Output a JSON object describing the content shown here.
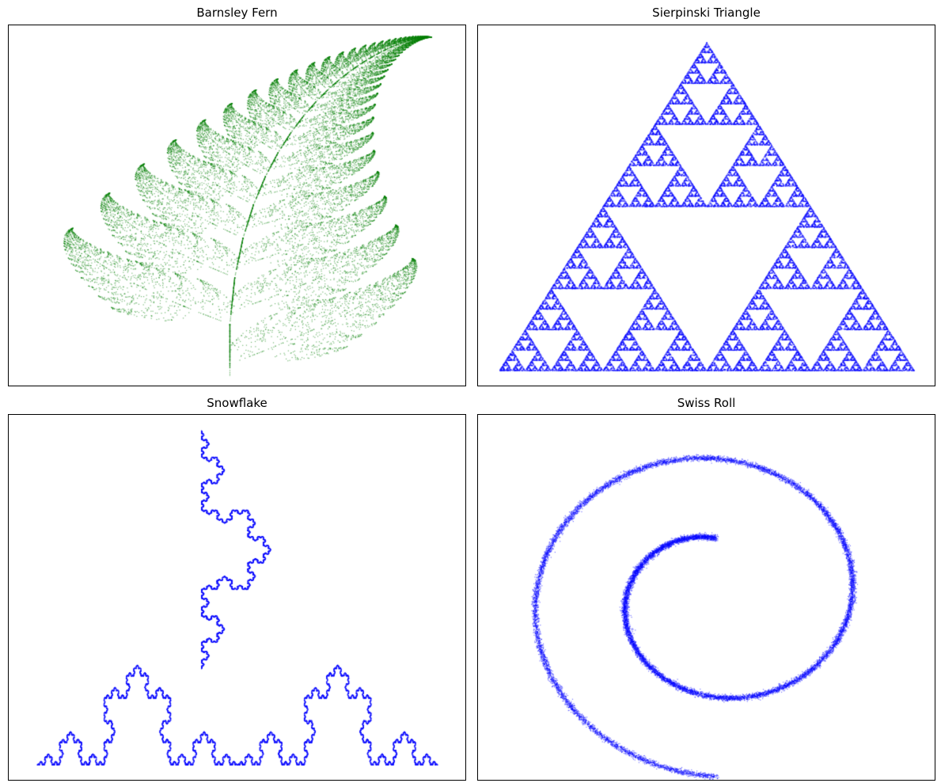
{
  "chart_data": [
    {
      "type": "scatter",
      "title": "Barnsley Fern",
      "shape": "barnsley-fern",
      "color": "#008000",
      "xlim": [
        -2.9,
        3.1
      ],
      "ylim": [
        -0.2,
        10.3
      ],
      "ticks": false,
      "grid": false
    },
    {
      "type": "scatter",
      "title": "Sierpinski Triangle",
      "shape": "sierpinski-triangle",
      "color": "#0000ff",
      "xlim": [
        -0.05,
        1.05
      ],
      "ylim": [
        -0.04,
        0.91
      ],
      "ticks": false,
      "grid": false
    },
    {
      "type": "scatter",
      "title": "Snowflake",
      "shape": "koch-snowflake-ifs",
      "color": "#0000ff",
      "xlim": [
        -0.07,
        1.07
      ],
      "ylim": [
        -0.04,
        0.91
      ],
      "ticks": false,
      "grid": false
    },
    {
      "type": "scatter",
      "title": "Swiss Roll",
      "shape": "spiral",
      "color": "#0000ff",
      "xlim": [
        -1.23,
        1.13
      ],
      "ylim": [
        -1.08,
        0.96
      ],
      "ticks": false,
      "grid": false
    }
  ]
}
